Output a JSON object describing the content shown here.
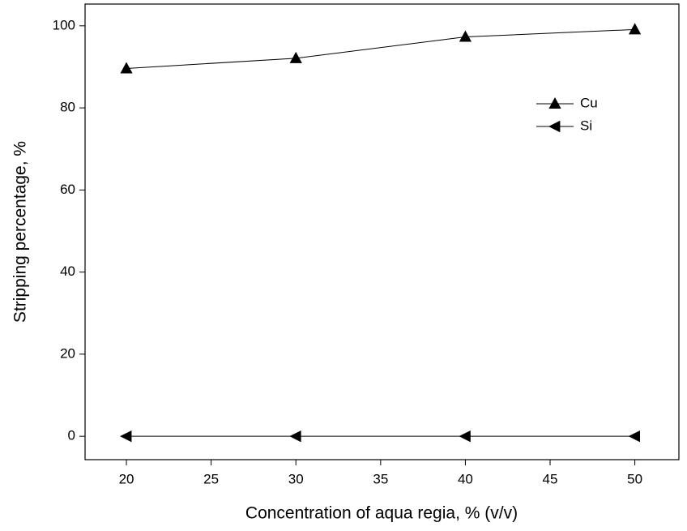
{
  "chart_data": {
    "type": "line",
    "x_label": "Concentration of aqua regia, % (v/v)",
    "y_label": "Stripping percentage, %",
    "x": [
      20,
      30,
      40,
      50
    ],
    "series": [
      {
        "name": "Cu",
        "color": "#000000",
        "marker": "triangle-up",
        "values": [
          89.6,
          92.1,
          97.3,
          99.1
        ]
      },
      {
        "name": "Si",
        "color": "#000000",
        "marker": "triangle-left",
        "values": [
          0,
          0,
          0,
          0
        ]
      }
    ],
    "xlim": [
      17.56,
      52.6
    ],
    "xticks": [
      20,
      25,
      30,
      35,
      40,
      45,
      50
    ],
    "ylim": [
      -5.7,
      105.3
    ],
    "yticks": [
      0,
      20,
      40,
      60,
      80,
      100
    ],
    "grid": false,
    "legend": "upper right"
  }
}
